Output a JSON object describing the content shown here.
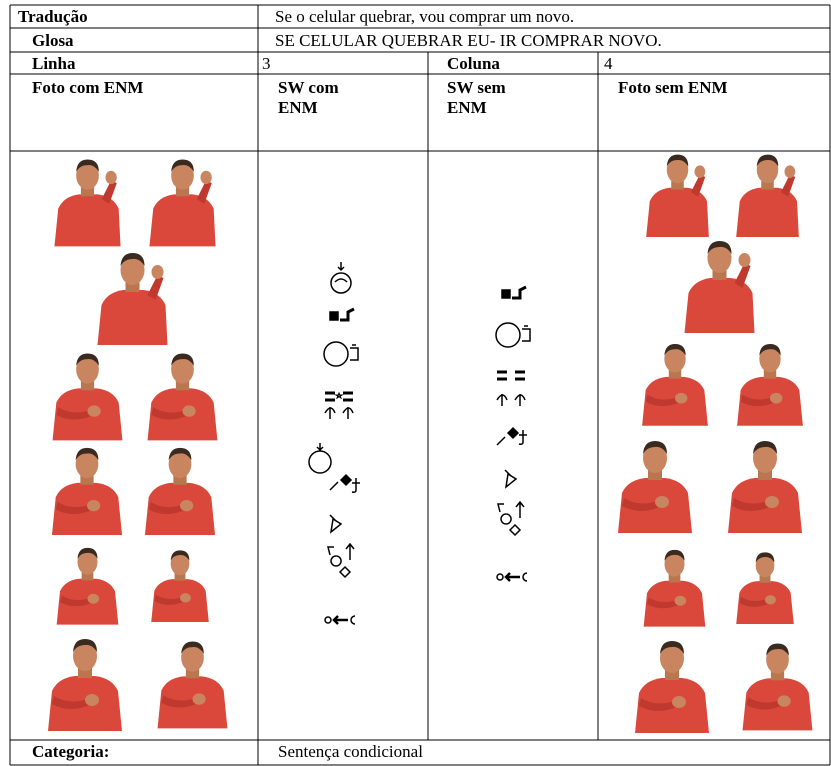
{
  "table": {
    "rows": [
      [
        "Tradução",
        "Se o celular quebrar, vou comprar um novo."
      ],
      [
        "Glosa",
        "SE CELULAR QUEBRAR EU- IR COMPRAR NOVO."
      ],
      [
        "Linha",
        3,
        "Coluna",
        4
      ],
      [
        "Foto com ENM",
        "SW com ENM",
        "SW sem ENM",
        "Foto sem ENM"
      ],
      [
        "Categoria:",
        "Sentença condicional"
      ]
    ]
  }
}
